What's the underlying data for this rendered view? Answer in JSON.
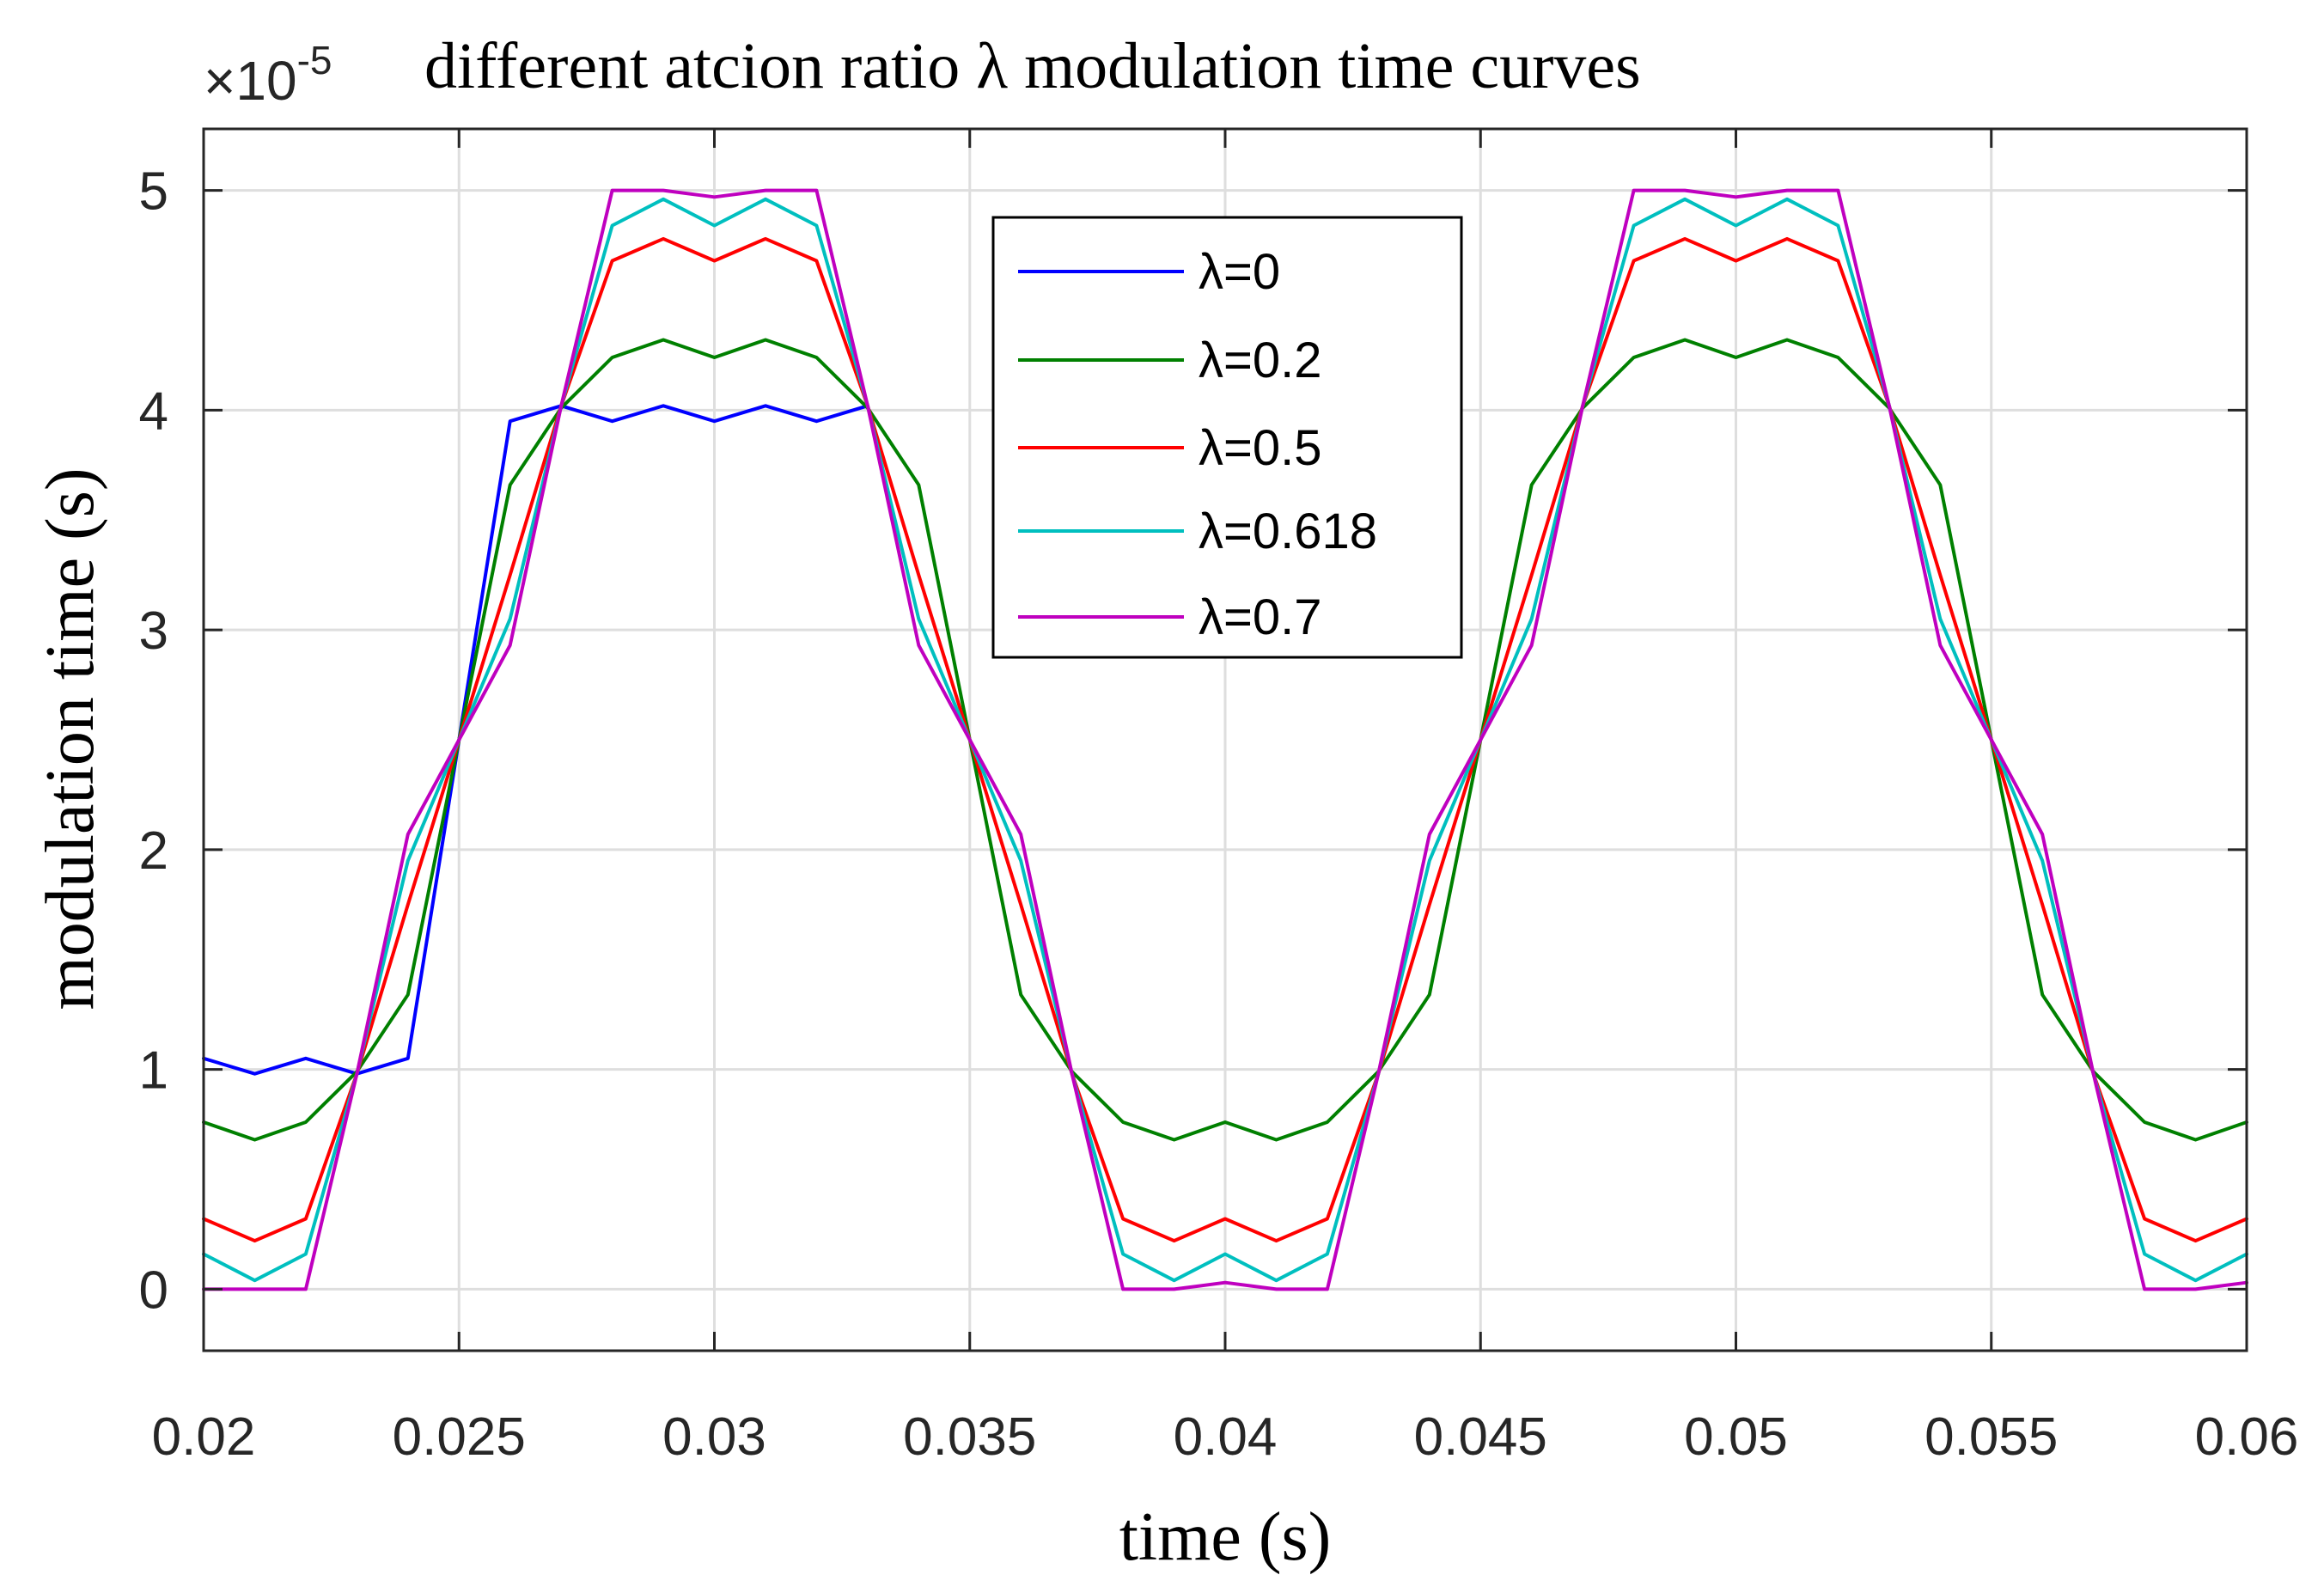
{
  "chart_data": {
    "type": "line",
    "title": "different atcion ratio λ modulation time curves",
    "exponent_prefix": "×10",
    "exponent_power": "-5",
    "xlabel": "time (s)",
    "ylabel": "modulation time (s)",
    "xlim": [
      0.02,
      0.06
    ],
    "ylim": [
      -0.28,
      5.28
    ],
    "y_scale": 1e-05,
    "grid": true,
    "legend_position": "top-center",
    "xticks": [
      0.02,
      0.025,
      0.03,
      0.035,
      0.04,
      0.045,
      0.05,
      0.055,
      0.06
    ],
    "xtick_labels": [
      "0.02",
      "0.025",
      "0.03",
      "0.035",
      "0.04",
      "0.045",
      "0.05",
      "0.055",
      "0.06"
    ],
    "yticks": [
      0,
      1,
      2,
      3,
      4,
      5
    ],
    "ytick_labels": [
      "0",
      "1",
      "2",
      "3",
      "4",
      "5"
    ],
    "period": 0.02,
    "sample_step": 0.001,
    "series": [
      {
        "name": "λ=0",
        "label": "λ=0",
        "color": "#0000ff",
        "x_end": 0.033,
        "values": [
          1.05,
          0.98,
          1.05,
          0.98,
          1.05,
          2.5,
          3.95,
          4.02,
          3.95,
          4.02,
          3.95,
          4.02,
          3.95,
          4.02
        ]
      },
      {
        "name": "λ=0.2",
        "label": "λ=0.2",
        "color": "#008000",
        "values": [
          0.76,
          0.68,
          0.76,
          0.99,
          1.34,
          2.5,
          3.66,
          4.01,
          4.24,
          4.32,
          4.24,
          4.32,
          4.24,
          4.01,
          3.66,
          2.5,
          1.34,
          0.99,
          0.76,
          0.68,
          0.76,
          0.68,
          0.76,
          0.99,
          1.34,
          2.5,
          3.66,
          4.01,
          4.24,
          4.32,
          4.24,
          4.32,
          4.24,
          4.01,
          3.66,
          2.5,
          1.34,
          0.99,
          0.76,
          0.68,
          0.76
        ]
      },
      {
        "name": "λ=0.5",
        "label": "λ=0.5",
        "color": "#ff0000",
        "values": [
          0.32,
          0.22,
          0.32,
          0.98,
          1.75,
          2.5,
          3.25,
          4.02,
          4.68,
          4.78,
          4.68,
          4.78,
          4.68,
          4.02,
          3.25,
          2.5,
          1.75,
          0.98,
          0.32,
          0.22,
          0.32,
          0.22,
          0.32,
          0.98,
          1.75,
          2.5,
          3.25,
          4.02,
          4.68,
          4.78,
          4.68,
          4.78,
          4.68,
          4.02,
          3.25,
          2.5,
          1.75,
          0.98,
          0.32,
          0.22,
          0.32
        ]
      },
      {
        "name": "λ=0.618",
        "label": "λ=0.618",
        "color": "#00bfbf",
        "values": [
          0.16,
          0.04,
          0.16,
          0.98,
          1.95,
          2.5,
          3.05,
          4.02,
          4.84,
          4.96,
          4.84,
          4.96,
          4.84,
          4.02,
          3.05,
          2.5,
          1.95,
          0.98,
          0.16,
          0.04,
          0.16,
          0.04,
          0.16,
          0.98,
          1.95,
          2.5,
          3.05,
          4.02,
          4.84,
          4.96,
          4.84,
          4.96,
          4.84,
          4.02,
          3.05,
          2.5,
          1.95,
          0.98,
          0.16,
          0.04,
          0.16
        ]
      },
      {
        "name": "λ=0.7",
        "label": "λ=0.7",
        "color": "#bf00bf",
        "values": [
          0.0,
          0.0,
          0.0,
          0.98,
          2.07,
          2.5,
          2.93,
          4.02,
          5.0,
          5.0,
          4.97,
          5.0,
          5.0,
          4.02,
          2.93,
          2.5,
          2.07,
          0.98,
          0.0,
          0.0,
          0.03,
          0.0,
          0.0,
          0.98,
          2.07,
          2.5,
          2.93,
          4.02,
          5.0,
          5.0,
          4.97,
          5.0,
          5.0,
          4.02,
          2.93,
          2.5,
          2.07,
          0.98,
          0.0,
          0.0,
          0.03
        ]
      }
    ]
  }
}
